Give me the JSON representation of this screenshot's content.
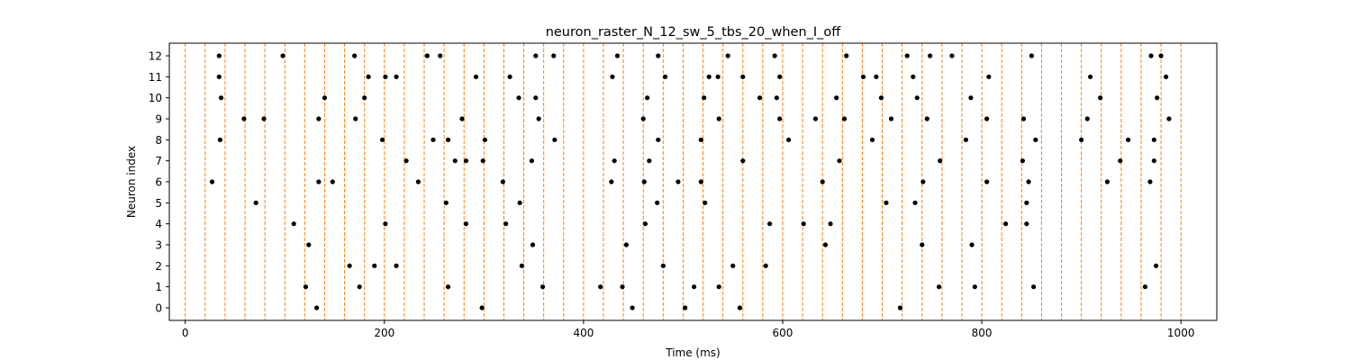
{
  "chart_data": {
    "type": "scatter",
    "title": "neuron_raster_N_12_sw_5_tbs_20_when_I_off",
    "xlabel": "Time (ms)",
    "ylabel": "Neuron index",
    "xlim": [
      -16,
      1036
    ],
    "ylim": [
      -0.6,
      12.6
    ],
    "xticks": [
      0,
      200,
      400,
      600,
      800,
      1000
    ],
    "yticks": [
      0,
      1,
      2,
      3,
      4,
      5,
      6,
      7,
      8,
      9,
      10,
      11,
      12
    ],
    "grid": false,
    "legend": "none",
    "colors": {
      "spike": "#000000",
      "window_line": "#ff7f0e"
    },
    "vlines": [
      0,
      20,
      40,
      60,
      80,
      100,
      120,
      140,
      160,
      180,
      200,
      220,
      240,
      260,
      280,
      300,
      320,
      340,
      360,
      380,
      400,
      420,
      440,
      460,
      480,
      500,
      520,
      540,
      560,
      580,
      600,
      620,
      640,
      660,
      680,
      700,
      720,
      740,
      760,
      780,
      800,
      820,
      840,
      860,
      880,
      900,
      920,
      940,
      960,
      980,
      1000
    ],
    "spikes": [
      [
        34,
        12
      ],
      [
        98,
        12
      ],
      [
        170,
        12
      ],
      [
        243,
        12
      ],
      [
        256,
        12
      ],
      [
        352,
        12
      ],
      [
        370,
        12
      ],
      [
        434,
        12
      ],
      [
        475,
        12
      ],
      [
        545,
        12
      ],
      [
        592,
        12
      ],
      [
        664,
        12
      ],
      [
        725,
        12
      ],
      [
        748,
        12
      ],
      [
        770,
        12
      ],
      [
        850,
        12
      ],
      [
        970,
        12
      ],
      [
        980,
        12
      ],
      [
        34,
        11
      ],
      [
        184,
        11
      ],
      [
        201,
        11
      ],
      [
        212,
        11
      ],
      [
        292,
        11
      ],
      [
        326,
        11
      ],
      [
        429,
        11
      ],
      [
        482,
        11
      ],
      [
        526,
        11
      ],
      [
        535,
        11
      ],
      [
        560,
        11
      ],
      [
        597,
        11
      ],
      [
        681,
        11
      ],
      [
        694,
        11
      ],
      [
        731,
        11
      ],
      [
        807,
        11
      ],
      [
        909,
        11
      ],
      [
        985,
        11
      ],
      [
        36,
        10
      ],
      [
        140,
        10
      ],
      [
        180,
        10
      ],
      [
        335,
        10
      ],
      [
        352,
        10
      ],
      [
        464,
        10
      ],
      [
        521,
        10
      ],
      [
        577,
        10
      ],
      [
        594,
        10
      ],
      [
        654,
        10
      ],
      [
        699,
        10
      ],
      [
        735,
        10
      ],
      [
        789,
        10
      ],
      [
        919,
        10
      ],
      [
        976,
        10
      ],
      [
        59,
        9
      ],
      [
        79,
        9
      ],
      [
        134,
        9
      ],
      [
        171,
        9
      ],
      [
        278,
        9
      ],
      [
        355,
        9
      ],
      [
        460,
        9
      ],
      [
        536,
        9
      ],
      [
        597,
        9
      ],
      [
        633,
        9
      ],
      [
        662,
        9
      ],
      [
        709,
        9
      ],
      [
        745,
        9
      ],
      [
        805,
        9
      ],
      [
        842,
        9
      ],
      [
        906,
        9
      ],
      [
        988,
        9
      ],
      [
        35,
        8
      ],
      [
        198,
        8
      ],
      [
        249,
        8
      ],
      [
        264,
        8
      ],
      [
        301,
        8
      ],
      [
        371,
        8
      ],
      [
        475,
        8
      ],
      [
        518,
        8
      ],
      [
        606,
        8
      ],
      [
        690,
        8
      ],
      [
        784,
        8
      ],
      [
        854,
        8
      ],
      [
        900,
        8
      ],
      [
        947,
        8
      ],
      [
        973,
        8
      ],
      [
        222,
        7
      ],
      [
        271,
        7
      ],
      [
        282,
        7
      ],
      [
        299,
        7
      ],
      [
        348,
        7
      ],
      [
        431,
        7
      ],
      [
        466,
        7
      ],
      [
        560,
        7
      ],
      [
        657,
        7
      ],
      [
        758,
        7
      ],
      [
        841,
        7
      ],
      [
        939,
        7
      ],
      [
        973,
        7
      ],
      [
        27,
        6
      ],
      [
        134,
        6
      ],
      [
        148,
        6
      ],
      [
        234,
        6
      ],
      [
        319,
        6
      ],
      [
        428,
        6
      ],
      [
        461,
        6
      ],
      [
        495,
        6
      ],
      [
        518,
        6
      ],
      [
        640,
        6
      ],
      [
        741,
        6
      ],
      [
        805,
        6
      ],
      [
        847,
        6
      ],
      [
        926,
        6
      ],
      [
        969,
        6
      ],
      [
        71,
        5
      ],
      [
        262,
        5
      ],
      [
        336,
        5
      ],
      [
        474,
        5
      ],
      [
        522,
        5
      ],
      [
        704,
        5
      ],
      [
        733,
        5
      ],
      [
        845,
        5
      ],
      [
        109,
        4
      ],
      [
        201,
        4
      ],
      [
        282,
        4
      ],
      [
        322,
        4
      ],
      [
        462,
        4
      ],
      [
        587,
        4
      ],
      [
        621,
        4
      ],
      [
        648,
        4
      ],
      [
        824,
        4
      ],
      [
        845,
        4
      ],
      [
        124,
        3
      ],
      [
        349,
        3
      ],
      [
        443,
        3
      ],
      [
        643,
        3
      ],
      [
        740,
        3
      ],
      [
        790,
        3
      ],
      [
        165,
        2
      ],
      [
        190,
        2
      ],
      [
        212,
        2
      ],
      [
        338,
        2
      ],
      [
        480,
        2
      ],
      [
        550,
        2
      ],
      [
        583,
        2
      ],
      [
        975,
        2
      ],
      [
        121,
        1
      ],
      [
        175,
        1
      ],
      [
        264,
        1
      ],
      [
        359,
        1
      ],
      [
        417,
        1
      ],
      [
        439,
        1
      ],
      [
        511,
        1
      ],
      [
        536,
        1
      ],
      [
        757,
        1
      ],
      [
        793,
        1
      ],
      [
        852,
        1
      ],
      [
        964,
        1
      ],
      [
        132,
        0
      ],
      [
        298,
        0
      ],
      [
        449,
        0
      ],
      [
        502,
        0
      ],
      [
        557,
        0
      ],
      [
        718,
        0
      ]
    ]
  }
}
